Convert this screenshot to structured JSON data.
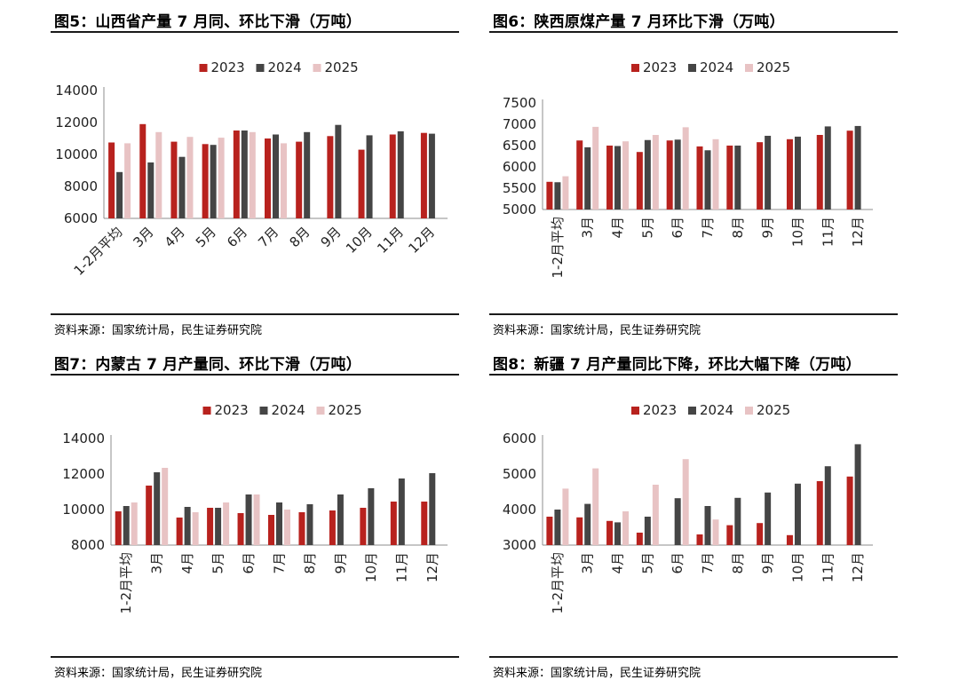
{
  "colors": {
    "2023": "#b8221e",
    "2024": "#454545",
    "2025": "#e8c3c4"
  },
  "source_text": "资料来源：国家统计局，民生证券研究院",
  "chart_data": [
    {
      "type": "bar",
      "title": "图5：山西省产量 7 月同、环比下滑（万吨）",
      "categories": [
        "1-2月平均",
        "3月",
        "4月",
        "5月",
        "6月",
        "7月",
        "8月",
        "9月",
        "10月",
        "11月",
        "12月"
      ],
      "series": [
        {
          "name": "2023",
          "values": [
            10750,
            11900,
            10800,
            10650,
            11500,
            11000,
            10800,
            11150,
            10300,
            11250,
            11350
          ]
        },
        {
          "name": "2024",
          "values": [
            8900,
            9500,
            9850,
            10600,
            11500,
            11250,
            11400,
            11850,
            11200,
            11450,
            11300
          ]
        },
        {
          "name": "2025",
          "values": [
            10700,
            11400,
            11100,
            11050,
            11400,
            10700,
            null,
            null,
            null,
            null,
            null
          ]
        }
      ],
      "yticks": [
        6000,
        8000,
        10000,
        12000,
        14000
      ],
      "ylim": [
        6000,
        14000
      ],
      "legend_position": "top",
      "grid": false
    },
    {
      "type": "bar",
      "title": "图6：陕西原煤产量 7 月环比下滑（万吨）",
      "categories": [
        "1-2月平均",
        "3月",
        "4月",
        "5月",
        "6月",
        "7月",
        "8月",
        "9月",
        "10月",
        "11月",
        "12月"
      ],
      "series": [
        {
          "name": "2023",
          "values": [
            5650,
            6620,
            6500,
            6350,
            6620,
            6480,
            6500,
            6580,
            6650,
            6750,
            6850
          ]
        },
        {
          "name": "2024",
          "values": [
            5640,
            6460,
            6490,
            6630,
            6640,
            6390,
            6500,
            6730,
            6710,
            6950,
            6960
          ]
        },
        {
          "name": "2025",
          "values": [
            5780,
            6940,
            6600,
            6750,
            6930,
            6650,
            null,
            null,
            null,
            null,
            null
          ]
        }
      ],
      "yticks": [
        5000,
        5500,
        6000,
        6500,
        7000,
        7500
      ],
      "ylim": [
        5000,
        7500
      ],
      "legend_position": "top",
      "grid": false
    },
    {
      "type": "bar",
      "title": "图7：内蒙古 7 月产量同、环比下滑（万吨）",
      "categories": [
        "1-2月平均",
        "3月",
        "4月",
        "5月",
        "6月",
        "7月",
        "8月",
        "9月",
        "10月",
        "11月",
        "12月"
      ],
      "series": [
        {
          "name": "2023",
          "values": [
            9900,
            11350,
            9550,
            10100,
            9800,
            9700,
            9850,
            9950,
            10100,
            10450,
            10450
          ]
        },
        {
          "name": "2024",
          "values": [
            10200,
            12100,
            10150,
            10100,
            10850,
            10400,
            10300,
            10850,
            11200,
            11750,
            12050
          ]
        },
        {
          "name": "2025",
          "values": [
            10400,
            12350,
            9850,
            10400,
            10850,
            10000,
            null,
            null,
            null,
            null,
            null
          ]
        }
      ],
      "yticks": [
        8000,
        10000,
        12000,
        14000
      ],
      "ylim": [
        8000,
        14000
      ],
      "legend_position": "top",
      "grid": false
    },
    {
      "type": "bar",
      "title": "图8：新疆 7 月产量同比下降，环比大幅下降（万吨）",
      "categories": [
        "1-2月平均",
        "3月",
        "4月",
        "5月",
        "6月",
        "7月",
        "8月",
        "9月",
        "10月",
        "11月",
        "12月"
      ],
      "series": [
        {
          "name": "2023",
          "values": [
            3800,
            3780,
            3680,
            3350,
            null,
            3300,
            3560,
            3620,
            3280,
            4800,
            4930
          ]
        },
        {
          "name": "2024",
          "values": [
            4000,
            4160,
            3640,
            3800,
            4320,
            4100,
            4330,
            4480,
            4730,
            5220,
            5840
          ]
        },
        {
          "name": "2025",
          "values": [
            4590,
            5160,
            3950,
            4700,
            5420,
            3720,
            null,
            null,
            null,
            null,
            null
          ]
        }
      ],
      "yticks": [
        3000,
        4000,
        5000,
        6000
      ],
      "ylim": [
        3000,
        6000
      ],
      "legend_position": "top",
      "grid": false
    }
  ]
}
